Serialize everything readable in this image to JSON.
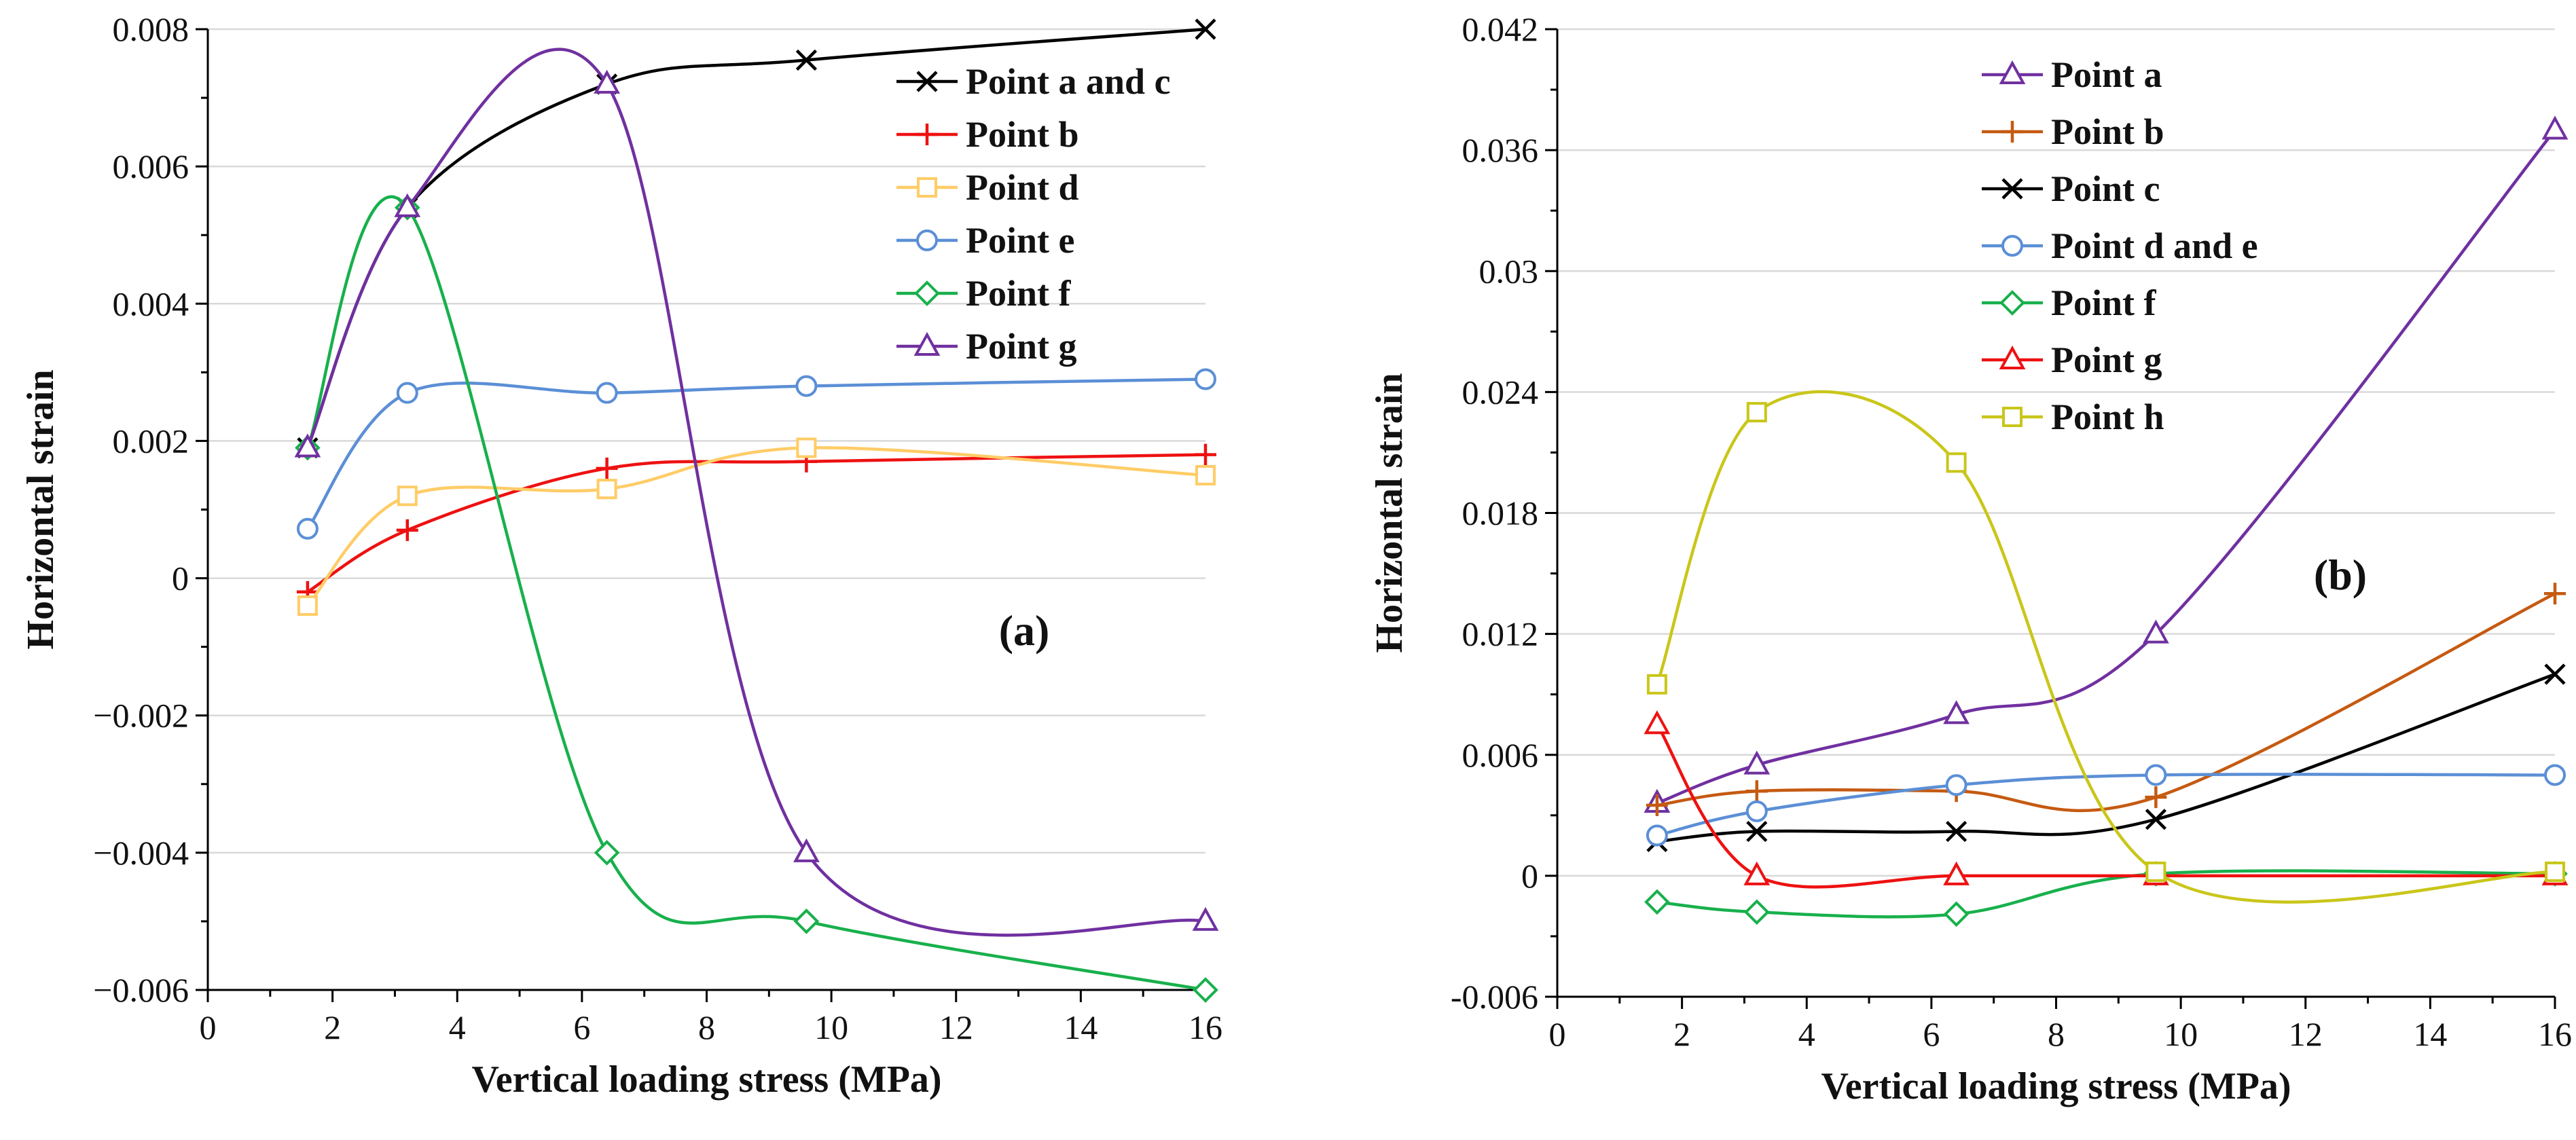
{
  "figure": {
    "panels": [
      "(a)",
      "(b)"
    ]
  },
  "chart_data": [
    {
      "type": "line",
      "panel_label": "(a)",
      "xlabel": "Vertical loading stress (MPa)",
      "ylabel": "Horizontal strain",
      "xlim": [
        0,
        16
      ],
      "ylim": [
        -0.006,
        0.008
      ],
      "x_ticks": [
        0,
        2,
        4,
        6,
        8,
        10,
        12,
        14,
        16
      ],
      "x_tick_labels": [
        "0",
        "2",
        "4",
        "6",
        "8",
        "10",
        "12",
        "14",
        "16"
      ],
      "y_ticks": [
        -0.006,
        -0.004,
        -0.002,
        0,
        0.002,
        0.004,
        0.006,
        0.008
      ],
      "y_tick_labels": [
        "−0.006",
        "−0.004",
        "−0.002",
        "0",
        "0.002",
        "0.004",
        "0.006",
        "0.008"
      ],
      "grid": "horizontal",
      "legend": "top-right",
      "x": [
        1.6,
        3.2,
        6.4,
        9.6,
        16
      ],
      "series": [
        {
          "name": "Point a and c",
          "color": "#000000",
          "marker": "x",
          "values": [
            0.0019,
            0.0054,
            0.0072,
            0.00755,
            0.008
          ]
        },
        {
          "name": "Point b",
          "color": "#ee1111",
          "marker": "plus",
          "values": [
            -0.0002,
            0.0007,
            0.0016,
            0.0017,
            0.0018
          ]
        },
        {
          "name": "Point d",
          "color": "#ffcc66",
          "marker": "square",
          "values": [
            -0.0004,
            0.0012,
            0.0013,
            0.0019,
            0.0015
          ]
        },
        {
          "name": "Point e",
          "color": "#5b8fd6",
          "marker": "circle",
          "values": [
            0.00072,
            0.0027,
            0.0027,
            0.0028,
            0.0029
          ]
        },
        {
          "name": "Point f",
          "color": "#18b04c",
          "marker": "diamond",
          "values": [
            0.0019,
            0.0054,
            -0.004,
            -0.005,
            -0.006
          ]
        },
        {
          "name": "Point g",
          "color": "#7030a0",
          "marker": "triangle",
          "values": [
            0.0019,
            0.0054,
            0.0072,
            -0.004,
            -0.005
          ]
        }
      ]
    },
    {
      "type": "line",
      "panel_label": "(b)",
      "xlabel": "Vertical loading stress (MPa)",
      "ylabel": "Horizontal strain",
      "xlim": [
        0,
        16
      ],
      "ylim": [
        -0.006,
        0.042
      ],
      "x_ticks": [
        0,
        2,
        4,
        6,
        8,
        10,
        12,
        14,
        16
      ],
      "x_tick_labels": [
        "0",
        "2",
        "4",
        "6",
        "8",
        "10",
        "12",
        "14",
        "16"
      ],
      "y_ticks": [
        -0.006,
        0,
        0.006,
        0.012,
        0.018,
        0.024,
        0.03,
        0.036,
        0.042
      ],
      "y_tick_labels": [
        "-0.006",
        "0",
        "0.006",
        "0.012",
        "0.018",
        "0.024",
        "0.03",
        "0.036",
        "0.042"
      ],
      "grid": "horizontal",
      "legend": "top-center",
      "x": [
        1.6,
        3.2,
        6.4,
        9.6,
        16
      ],
      "series": [
        {
          "name": "Point a",
          "color": "#7030a0",
          "marker": "triangle",
          "values": [
            0.0036,
            0.0055,
            0.008,
            0.012,
            0.037
          ]
        },
        {
          "name": "Point b",
          "color": "#c55a11",
          "marker": "plus",
          "values": [
            0.0035,
            0.0042,
            0.0042,
            0.0039,
            0.014
          ]
        },
        {
          "name": "Point c",
          "color": "#000000",
          "marker": "x",
          "values": [
            0.0017,
            0.0022,
            0.0022,
            0.0028,
            0.01
          ]
        },
        {
          "name": "Point d and e",
          "color": "#5b8fd6",
          "marker": "circle",
          "values": [
            0.002,
            0.0032,
            0.0045,
            0.005,
            0.005
          ]
        },
        {
          "name": "Point f",
          "color": "#18b04c",
          "marker": "diamond",
          "values": [
            -0.0013,
            -0.0018,
            -0.0019,
            0.0001,
            0.0001
          ]
        },
        {
          "name": "Point g",
          "color": "#ee1111",
          "marker": "triangle",
          "values": [
            0.0075,
            0.0,
            0.0,
            0.0,
            0.0
          ]
        },
        {
          "name": "Point h",
          "color": "#c9c61a",
          "marker": "square",
          "values": [
            0.0095,
            0.023,
            0.0205,
            0.0002,
            0.0002
          ]
        }
      ]
    }
  ]
}
